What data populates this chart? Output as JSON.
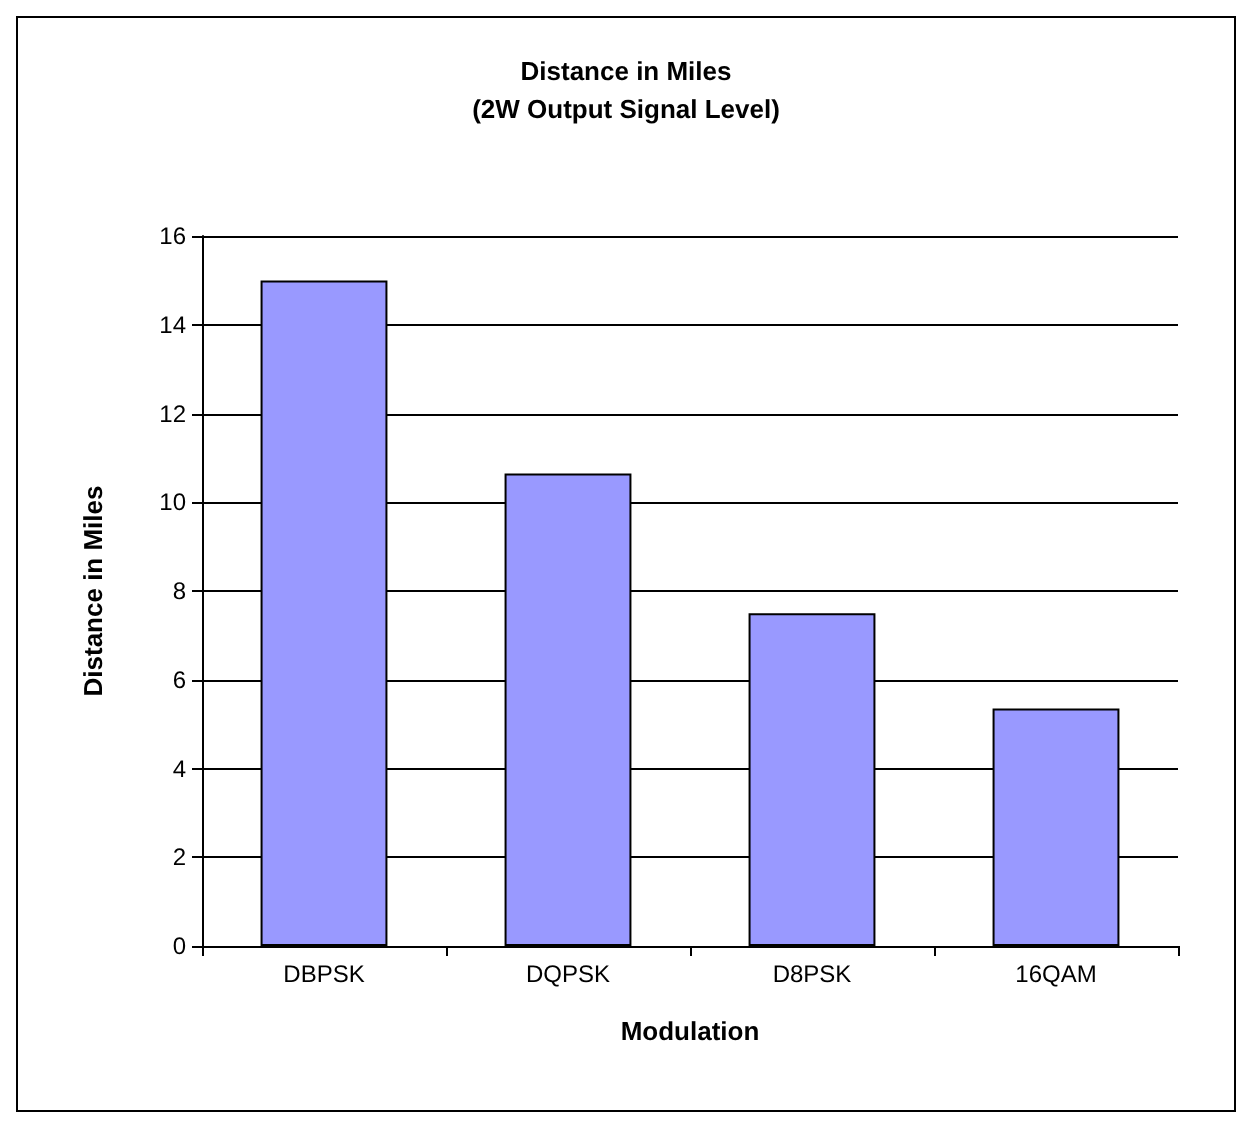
{
  "chart_data": {
    "type": "bar",
    "title": "Distance in Miles",
    "subtitle": "(2W Output Signal Level)",
    "xlabel": "Modulation",
    "ylabel": "Distance in Miles",
    "categories": [
      "DBPSK",
      "DQPSK",
      "D8PSK",
      "16QAM"
    ],
    "values": [
      15,
      10.65,
      7.5,
      5.35
    ],
    "color": "#9999ff",
    "ylim": [
      0,
      16
    ],
    "yticks": [
      0,
      2,
      4,
      6,
      8,
      10,
      12,
      14,
      16
    ],
    "grid": "y"
  }
}
